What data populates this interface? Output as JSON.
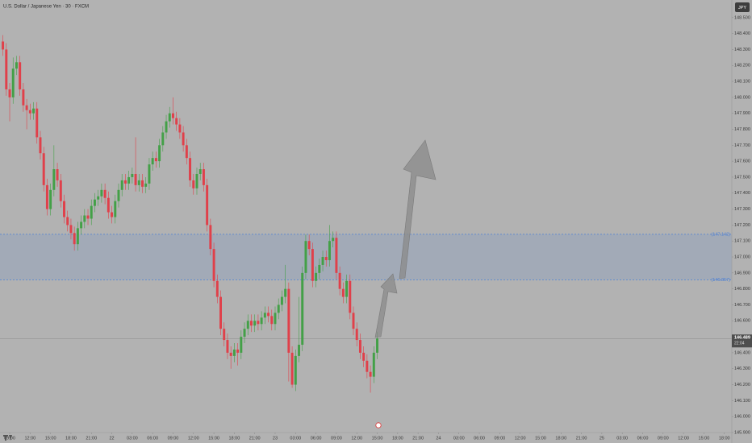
{
  "chart_data": {
    "type": "candlestick",
    "title": "U.S. Dollar / Japanese Yen · 30 · FXCM",
    "currency": "JPY",
    "up_color": "#43a047",
    "down_color": "#e0404a",
    "xlim": [
      -0.85,
      214.2
    ],
    "ylim": [
      145.9,
      148.61
    ],
    "xticks": [
      {
        "value": 2,
        "label": "09:00"
      },
      {
        "value": 8,
        "label": "12:00"
      },
      {
        "value": 14,
        "label": "15:00"
      },
      {
        "value": 20,
        "label": "18:00"
      },
      {
        "value": 26,
        "label": "21:00"
      },
      {
        "value": 32,
        "label": "22"
      },
      {
        "value": 38,
        "label": "03:00"
      },
      {
        "value": 44,
        "label": "06:00"
      },
      {
        "value": 50,
        "label": "09:00"
      },
      {
        "value": 56,
        "label": "12:00"
      },
      {
        "value": 62,
        "label": "15:00"
      },
      {
        "value": 68,
        "label": "18:00"
      },
      {
        "value": 74,
        "label": "21:00"
      },
      {
        "value": 80,
        "label": "23"
      },
      {
        "value": 86,
        "label": "03:00"
      },
      {
        "value": 92,
        "label": "06:00"
      },
      {
        "value": 98,
        "label": "09:00"
      },
      {
        "value": 104,
        "label": "12:00"
      },
      {
        "value": 110,
        "label": "15:00"
      },
      {
        "value": 116,
        "label": "18:00"
      },
      {
        "value": 122,
        "label": "21:00"
      },
      {
        "value": 128,
        "label": "24"
      },
      {
        "value": 134,
        "label": "03:00"
      },
      {
        "value": 140,
        "label": "06:00"
      },
      {
        "value": 146,
        "label": "09:00"
      },
      {
        "value": 152,
        "label": "12:00"
      },
      {
        "value": 158,
        "label": "15:00"
      },
      {
        "value": 164,
        "label": "18:00"
      },
      {
        "value": 170,
        "label": "21:00"
      },
      {
        "value": 176,
        "label": "25"
      },
      {
        "value": 182,
        "label": "03:00"
      },
      {
        "value": 188,
        "label": "06:00"
      },
      {
        "value": 194,
        "label": "09:00"
      },
      {
        "value": 200,
        "label": "12:00"
      },
      {
        "value": 206,
        "label": "15:00"
      },
      {
        "value": 212,
        "label": "18:00"
      }
    ],
    "yticks": [
      {
        "value": 148.5,
        "label": "148.500"
      },
      {
        "value": 148.4,
        "label": "148.400"
      },
      {
        "value": 148.3,
        "label": "148.300"
      },
      {
        "value": 148.2,
        "label": "148.200"
      },
      {
        "value": 148.1,
        "label": "148.100"
      },
      {
        "value": 148.0,
        "label": "148.000"
      },
      {
        "value": 147.9,
        "label": "147.900"
      },
      {
        "value": 147.8,
        "label": "147.800"
      },
      {
        "value": 147.7,
        "label": "147.700"
      },
      {
        "value": 147.6,
        "label": "147.600"
      },
      {
        "value": 147.5,
        "label": "147.500"
      },
      {
        "value": 147.4,
        "label": "147.400"
      },
      {
        "value": 147.3,
        "label": "147.300"
      },
      {
        "value": 147.2,
        "label": "147.200"
      },
      {
        "value": 147.1,
        "label": "147.100"
      },
      {
        "value": 147.0,
        "label": "147.000"
      },
      {
        "value": 146.9,
        "label": "146.900"
      },
      {
        "value": 146.8,
        "label": "146.800"
      },
      {
        "value": 146.7,
        "label": "146.700"
      },
      {
        "value": 146.6,
        "label": "146.600"
      },
      {
        "value": 146.5,
        "label": "146.500"
      },
      {
        "value": 146.4,
        "label": "146.400"
      },
      {
        "value": 146.3,
        "label": "146.300"
      },
      {
        "value": 146.2,
        "label": "146.200"
      },
      {
        "value": 146.1,
        "label": "146.100"
      },
      {
        "value": 146.0,
        "label": "146.000"
      },
      {
        "value": 145.9,
        "label": "145.900"
      }
    ],
    "zone": {
      "color": "#4a7fd6",
      "top": {
        "value": 147.142,
        "label": "(147.142)"
      },
      "bottom": {
        "value": 146.857,
        "label": "(146.857)"
      }
    },
    "current_price": {
      "value": 146.489,
      "label": "146.489"
    },
    "countdown": "22:04",
    "open": [
      148.35,
      148.3,
      148.05,
      148.0,
      148.18,
      148.22,
      148.05,
      147.95,
      147.92,
      147.9,
      147.93,
      147.75,
      147.65,
      147.45,
      147.3,
      147.42,
      147.55,
      147.48,
      147.35,
      147.25,
      147.2,
      147.15,
      147.08,
      147.18,
      147.22,
      147.26,
      147.24,
      147.32,
      147.36,
      147.38,
      147.42,
      147.37,
      147.28,
      147.25,
      147.35,
      147.42,
      147.48,
      147.46,
      147.5,
      147.52,
      147.45,
      147.48,
      147.44,
      147.46,
      147.58,
      147.62,
      147.6,
      147.7,
      147.78,
      147.85,
      147.9,
      147.87,
      147.83,
      147.78,
      147.7,
      147.62,
      147.48,
      147.43,
      147.52,
      147.55,
      147.45,
      147.2,
      147.05,
      146.85,
      146.75,
      146.55,
      146.48,
      146.4,
      146.38,
      146.42,
      146.4,
      146.5,
      146.55,
      146.6,
      146.57,
      146.6,
      146.58,
      146.62,
      146.65,
      146.63,
      146.58,
      146.65,
      146.7,
      146.75,
      146.8,
      146.4,
      146.2,
      146.38,
      146.45,
      146.9,
      147.1,
      147.05,
      146.85,
      146.9,
      146.95,
      147.0,
      146.98,
      147.1,
      147.12,
      146.9,
      146.8,
      146.75,
      146.85,
      146.65,
      146.55,
      146.48,
      146.4,
      146.35,
      146.28,
      146.25,
      146.4
    ],
    "high": [
      148.39,
      148.34,
      148.09,
      148.25,
      148.26,
      148.26,
      148.09,
      147.99,
      147.96,
      147.97,
      147.97,
      147.79,
      147.69,
      147.49,
      147.46,
      147.7,
      147.59,
      147.52,
      147.39,
      147.29,
      147.24,
      147.19,
      147.22,
      147.26,
      147.3,
      147.3,
      147.36,
      147.4,
      147.42,
      147.46,
      147.46,
      147.41,
      147.32,
      147.39,
      147.46,
      147.52,
      147.52,
      147.54,
      147.56,
      147.75,
      147.52,
      147.52,
      147.5,
      147.62,
      147.66,
      147.66,
      147.74,
      147.82,
      147.89,
      147.94,
      148.0,
      147.91,
      147.87,
      147.82,
      147.74,
      147.66,
      147.52,
      147.56,
      147.59,
      147.59,
      147.49,
      147.24,
      147.09,
      146.89,
      146.79,
      146.59,
      146.52,
      146.44,
      146.46,
      146.46,
      146.54,
      146.59,
      146.64,
      146.64,
      146.64,
      146.64,
      146.66,
      146.69,
      146.69,
      146.67,
      146.69,
      146.74,
      146.79,
      146.95,
      146.84,
      146.44,
      146.42,
      146.75,
      146.94,
      147.14,
      147.14,
      147.09,
      146.94,
      146.99,
      147.04,
      147.04,
      147.2,
      147.16,
      147.16,
      146.94,
      146.84,
      146.89,
      146.89,
      146.69,
      146.59,
      146.52,
      146.44,
      146.39,
      146.32,
      146.44,
      146.53
    ],
    "low": [
      148.26,
      148.01,
      147.85,
      147.96,
      148.14,
      148.01,
      147.91,
      147.8,
      147.86,
      147.86,
      147.71,
      147.61,
      147.41,
      147.26,
      147.26,
      147.38,
      147.44,
      147.31,
      147.21,
      147.16,
      147.11,
      147.04,
      147.04,
      147.14,
      147.18,
      147.2,
      147.2,
      147.28,
      147.32,
      147.34,
      147.33,
      147.24,
      147.21,
      147.21,
      147.31,
      147.38,
      147.42,
      147.42,
      147.46,
      147.41,
      147.41,
      147.4,
      147.4,
      147.42,
      147.54,
      147.56,
      147.56,
      147.66,
      147.74,
      147.81,
      147.83,
      147.79,
      147.74,
      147.66,
      147.58,
      147.44,
      147.39,
      147.39,
      147.48,
      147.41,
      147.16,
      147.01,
      146.81,
      146.71,
      146.51,
      146.44,
      146.36,
      146.3,
      146.34,
      146.32,
      146.36,
      146.46,
      146.51,
      146.53,
      146.53,
      146.54,
      146.54,
      146.58,
      146.59,
      146.54,
      146.54,
      146.61,
      146.66,
      146.71,
      146.22,
      146.18,
      146.16,
      146.34,
      146.41,
      146.86,
      147.01,
      146.81,
      146.81,
      146.86,
      146.91,
      146.94,
      146.94,
      147.06,
      146.86,
      146.76,
      146.71,
      146.71,
      146.61,
      146.51,
      146.44,
      146.36,
      146.31,
      146.24,
      146.15,
      146.21,
      146.36
    ],
    "close": [
      148.3,
      148.05,
      148.0,
      148.18,
      148.22,
      148.05,
      147.95,
      147.92,
      147.9,
      147.93,
      147.75,
      147.65,
      147.45,
      147.3,
      147.42,
      147.55,
      147.48,
      147.35,
      147.25,
      147.2,
      147.15,
      147.08,
      147.18,
      147.22,
      147.26,
      147.24,
      147.32,
      147.36,
      147.38,
      147.42,
      147.37,
      147.28,
      147.25,
      147.35,
      147.42,
      147.48,
      147.46,
      147.5,
      147.52,
      147.45,
      147.48,
      147.44,
      147.46,
      147.58,
      147.62,
      147.6,
      147.7,
      147.78,
      147.85,
      147.9,
      147.87,
      147.83,
      147.78,
      147.7,
      147.62,
      147.48,
      147.43,
      147.52,
      147.55,
      147.45,
      147.2,
      147.05,
      146.85,
      146.75,
      146.55,
      146.48,
      146.4,
      146.38,
      146.42,
      146.4,
      146.5,
      146.55,
      146.6,
      146.57,
      146.6,
      146.58,
      146.62,
      146.65,
      146.63,
      146.58,
      146.65,
      146.7,
      146.75,
      146.8,
      146.4,
      146.2,
      146.38,
      146.45,
      146.9,
      147.1,
      147.05,
      146.85,
      146.9,
      146.95,
      147.0,
      146.98,
      147.1,
      147.12,
      146.9,
      146.8,
      146.75,
      146.85,
      146.65,
      146.55,
      146.48,
      146.4,
      146.35,
      146.28,
      146.25,
      146.4,
      146.489
    ]
  }
}
